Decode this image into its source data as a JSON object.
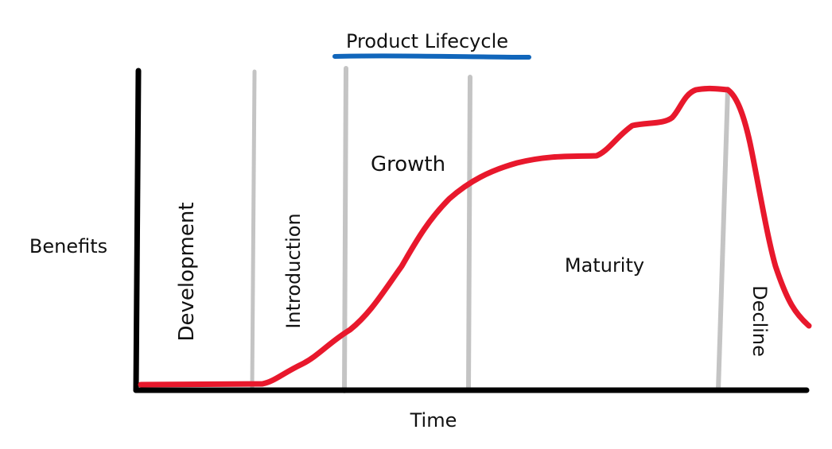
{
  "diagram": {
    "title": "Product Lifecycle",
    "x_axis_label": "Time",
    "y_axis_label": "Benefits",
    "stages": [
      {
        "id": "development",
        "label": "Development",
        "orientation": "vertical"
      },
      {
        "id": "introduction",
        "label": "Introduction",
        "orientation": "vertical"
      },
      {
        "id": "growth",
        "label": "Growth",
        "orientation": "horizontal"
      },
      {
        "id": "maturity",
        "label": "Maturity",
        "orientation": "horizontal"
      },
      {
        "id": "decline",
        "label": "Decline",
        "orientation": "vertical-down"
      }
    ]
  },
  "colors": {
    "axes": "#000000",
    "curve": "#e8182c",
    "dividers": "#c4c4c4",
    "title_underline": "#1166bb",
    "text": "#111111"
  }
}
